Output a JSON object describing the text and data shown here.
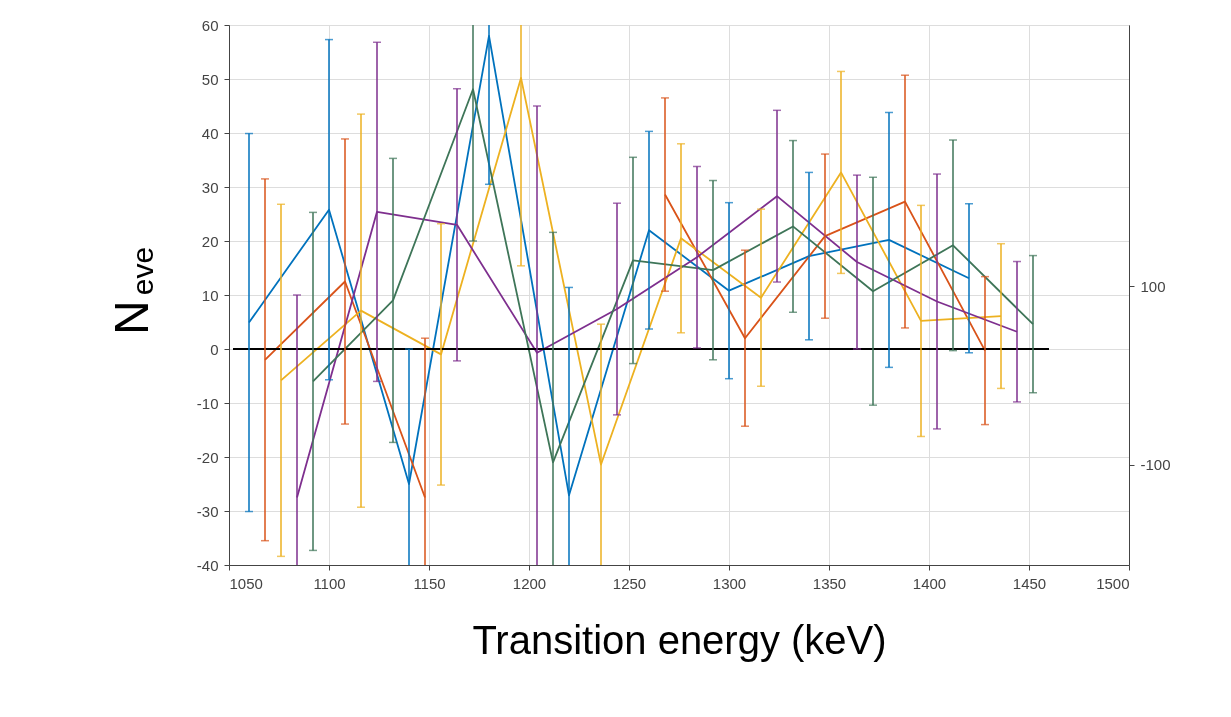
{
  "chart_data": {
    "type": "line",
    "xlabel": "Transition energy (keV)",
    "ylabel": "N$_{eve}$",
    "xlim": [
      1050,
      1500
    ],
    "xticks": [
      1050,
      1100,
      1150,
      1200,
      1250,
      1300,
      1350,
      1400,
      1450,
      1500
    ],
    "ylim": [
      -40,
      60
    ],
    "yticks": [
      -40,
      -30,
      -20,
      -10,
      0,
      10,
      20,
      30,
      40,
      50,
      60
    ],
    "y2lim": [
      -212,
      392
    ],
    "y2ticks": [
      -100,
      100
    ],
    "grid": true,
    "legend": false,
    "marker": "none",
    "line_style": "solid",
    "series": [
      {
        "color": "#0072bd",
        "x": [
          1060,
          1100,
          1140,
          1180,
          1220,
          1260,
          1300,
          1340,
          1380,
          1420
        ],
        "values": [
          4.9,
          25.8,
          -25,
          58,
          -27.1,
          22,
          10.8,
          17.2,
          20.2,
          13.1
        ],
        "errors": [
          35,
          31.5,
          25,
          27.5,
          38.5,
          18.3,
          16.3,
          15.5,
          23.6,
          13.8
        ]
      },
      {
        "color": "#d95319",
        "x": [
          1068,
          1108,
          1148,
          1188,
          1228,
          1268,
          1308,
          1348,
          1388,
          1428
        ],
        "values": [
          -2,
          12.5,
          -27.5,
          null,
          null,
          28.6,
          2,
          20.9,
          27.3,
          -0.3
        ],
        "errors": [
          33.5,
          26.4,
          29.5,
          null,
          null,
          17.9,
          16.3,
          15.2,
          23.4,
          13.7
        ]
      },
      {
        "color": "#edb120",
        "x": [
          1076,
          1116,
          1156,
          1196,
          1236,
          1276,
          1316,
          1356,
          1396,
          1436
        ],
        "values": [
          -5.8,
          7.1,
          -1,
          50.2,
          -21.4,
          20.5,
          9.5,
          32.7,
          5.2,
          6.1
        ],
        "errors": [
          32.6,
          36.4,
          24.2,
          34.8,
          26,
          17.5,
          16.4,
          18.7,
          21.4,
          13.4
        ]
      },
      {
        "color": "#7e2f8e",
        "x": [
          1084,
          1124,
          1164,
          1204,
          1244,
          1284,
          1324,
          1364,
          1404,
          1444
        ],
        "values": [
          -27.5,
          25.4,
          23,
          -0.7,
          7.4,
          17,
          28.3,
          16.1,
          8.8,
          3.2
        ],
        "errors": [
          37.5,
          31.4,
          25.2,
          45.7,
          19.6,
          16.8,
          15.9,
          16.1,
          23.6,
          13
        ]
      },
      {
        "color": "#3e7558",
        "x": [
          1092,
          1132,
          1172,
          1212,
          1252,
          1292,
          1332,
          1372,
          1412,
          1452
        ],
        "values": [
          -6,
          9,
          48.1,
          -21,
          16.4,
          14.6,
          22.7,
          10.7,
          19.2,
          4.6
        ],
        "errors": [
          31.3,
          26.3,
          28.1,
          42.6,
          19.1,
          16.6,
          15.9,
          21.1,
          19.5,
          12.7
        ]
      },
      {
        "color": "#000000",
        "x": [
          1052,
          1460
        ],
        "values": [
          0,
          0
        ]
      }
    ]
  }
}
